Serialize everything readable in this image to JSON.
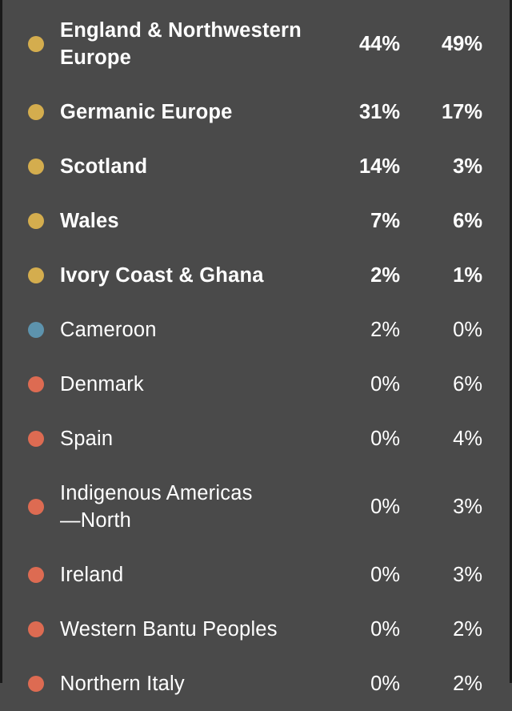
{
  "colors": {
    "background": "#4a4a4a",
    "rail": "#1a1a1a",
    "text": "#ffffff"
  },
  "regions": [
    {
      "name": "England & Northwestern\nEurope",
      "value_a": "44%",
      "value_b": "49%",
      "dot_color": "#d4ad4e",
      "bold": true,
      "tall": true
    },
    {
      "name": "Germanic Europe",
      "value_a": "31%",
      "value_b": "17%",
      "dot_color": "#d4ad4e",
      "bold": true,
      "tall": false
    },
    {
      "name": "Scotland",
      "value_a": "14%",
      "value_b": "3%",
      "dot_color": "#d4ad4e",
      "bold": true,
      "tall": false
    },
    {
      "name": "Wales",
      "value_a": "7%",
      "value_b": "6%",
      "dot_color": "#d4ad4e",
      "bold": true,
      "tall": false
    },
    {
      "name": "Ivory Coast & Ghana",
      "value_a": "2%",
      "value_b": "1%",
      "dot_color": "#d4ad4e",
      "bold": true,
      "tall": false
    },
    {
      "name": "Cameroon",
      "value_a": "2%",
      "value_b": "0%",
      "dot_color": "#5d93ad",
      "bold": false,
      "tall": false
    },
    {
      "name": "Denmark",
      "value_a": "0%",
      "value_b": "6%",
      "dot_color": "#dd6b52",
      "bold": false,
      "tall": false
    },
    {
      "name": "Spain",
      "value_a": "0%",
      "value_b": "4%",
      "dot_color": "#dd6b52",
      "bold": false,
      "tall": false
    },
    {
      "name": "Indigenous Americas\n—North",
      "value_a": "0%",
      "value_b": "3%",
      "dot_color": "#dd6b52",
      "bold": false,
      "tall": true
    },
    {
      "name": "Ireland",
      "value_a": "0%",
      "value_b": "3%",
      "dot_color": "#dd6b52",
      "bold": false,
      "tall": false
    },
    {
      "name": "Western Bantu Peoples",
      "value_a": "0%",
      "value_b": "2%",
      "dot_color": "#dd6b52",
      "bold": false,
      "tall": false
    },
    {
      "name": "Northern Italy",
      "value_a": "0%",
      "value_b": "2%",
      "dot_color": "#dd6b52",
      "bold": false,
      "tall": false
    }
  ]
}
